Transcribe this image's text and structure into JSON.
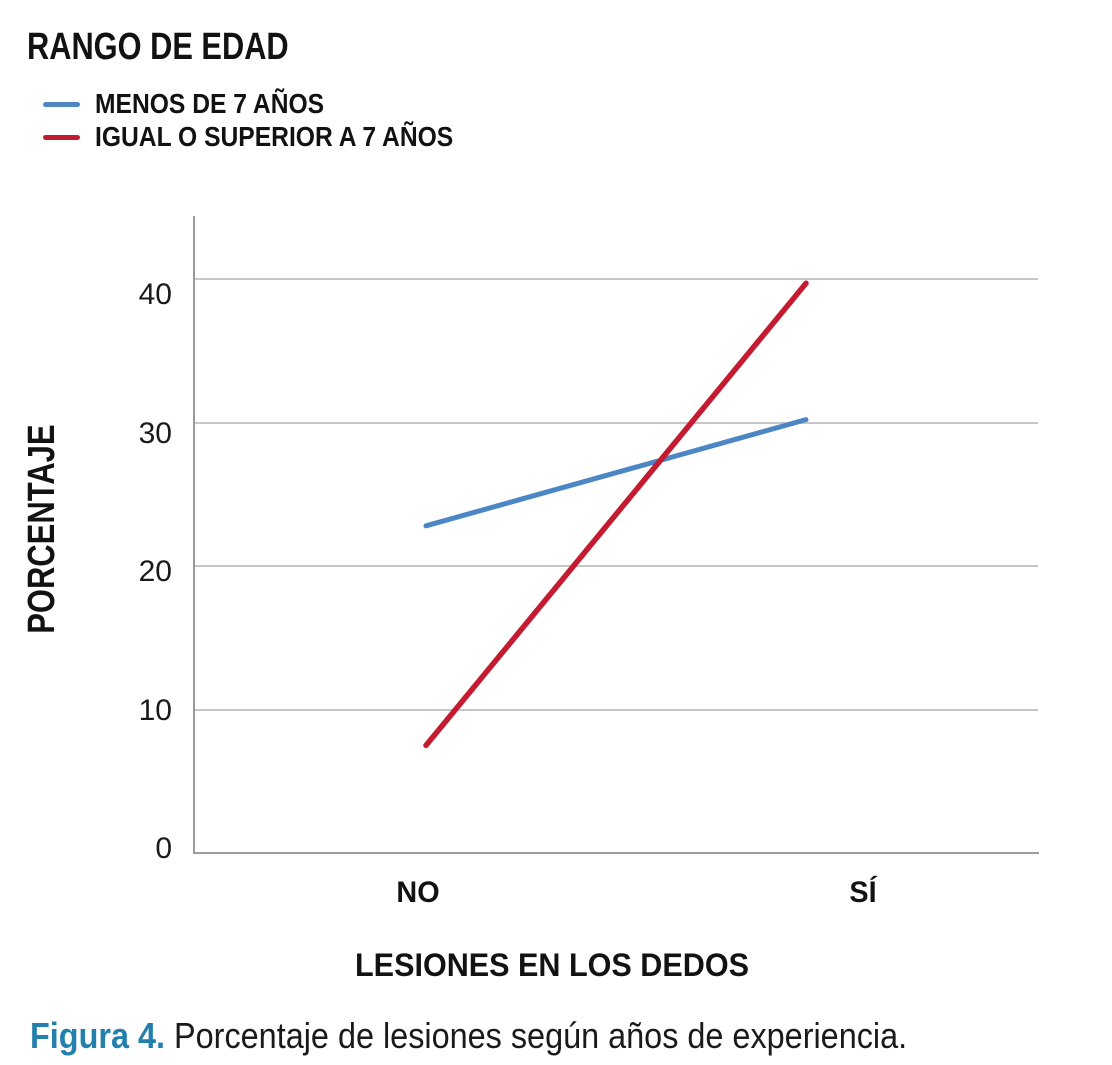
{
  "legend": {
    "title": "RANGO DE EDAD",
    "items": [
      {
        "label": "MENOS DE 7 AÑOS",
        "color": "#4C86C4"
      },
      {
        "label": "IGUAL O SUPERIOR A 7 AÑOS",
        "color": "#C51B30"
      }
    ]
  },
  "chart_data": {
    "type": "line",
    "categories": [
      "NO",
      "SÍ"
    ],
    "series": [
      {
        "name": "MENOS DE 7 AÑOS",
        "color": "#4C86C4",
        "values": [
          22.8,
          30.2
        ]
      },
      {
        "name": "IGUAL O SUPERIOR A 7 AÑOS",
        "color": "#C51B30",
        "values": [
          7.5,
          39.7
        ]
      }
    ],
    "xlabel": "LESIONES EN LOS DEDOS",
    "ylabel": "PORCENTAJE",
    "yticks": [
      0,
      10,
      20,
      30,
      40
    ],
    "ylim": [
      0,
      44.5
    ],
    "grid": "horizontal",
    "legend_position": "top-left"
  },
  "caption": {
    "prefix": "Figura 4.",
    "text": "Porcentaje de lesiones según años de experiencia.",
    "prefix_color": "#2380AC"
  }
}
